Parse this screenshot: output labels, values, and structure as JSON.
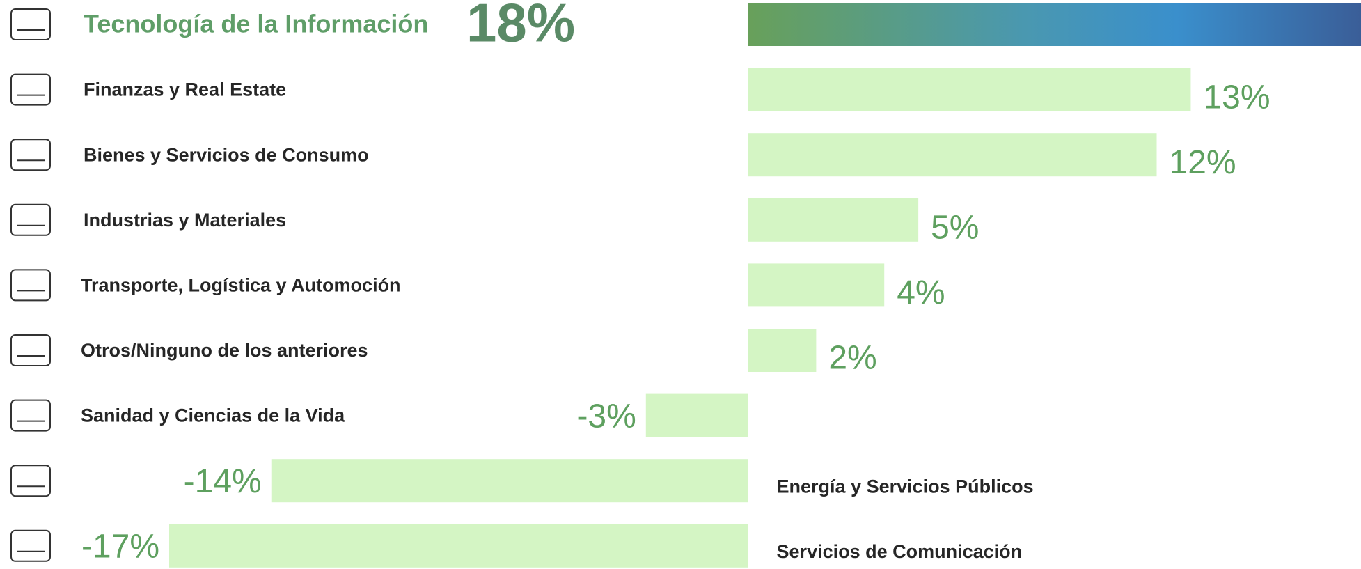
{
  "chart_data": {
    "type": "bar",
    "orientation": "horizontal",
    "categories": [
      "Tecnología de la Información",
      "Finanzas y Real Estate",
      "Bienes y Servicios de Consumo",
      "Industrias y Materiales",
      "Transporte, Logística y Automoción",
      "Otros/Ninguno de los anteriores",
      "Sanidad y Ciencias de la Vida",
      "Energía y Servicios Públicos",
      "Servicios de Comunicación"
    ],
    "values": [
      18,
      13,
      12,
      5,
      4,
      2,
      -3,
      -14,
      -17
    ],
    "value_labels": [
      "18%",
      "13%",
      "12%",
      "5%",
      "4%",
      "2%",
      "-3%",
      "-14%",
      "-17%"
    ],
    "color": "#d4f5c4"
  }
}
